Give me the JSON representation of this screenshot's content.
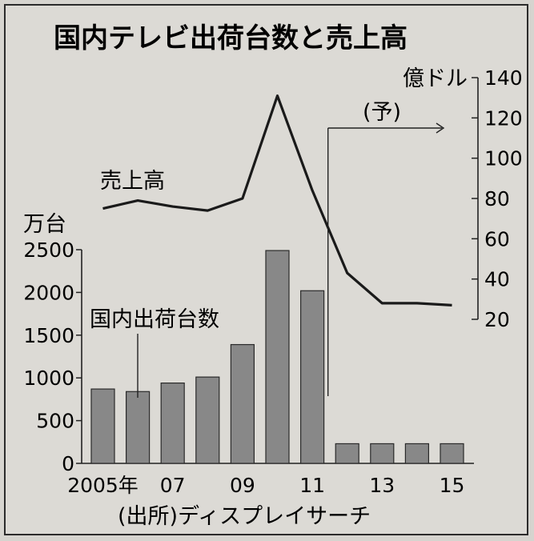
{
  "chart_data": {
    "type": "bar+line",
    "title": "国内テレビ出荷台数と売上高",
    "categories": [
      "2005",
      "2006",
      "2007",
      "2008",
      "2009",
      "2010",
      "2011",
      "2012",
      "2013",
      "2014",
      "2015"
    ],
    "x_tick_labels": [
      "2005年",
      "07",
      "09",
      "11",
      "13",
      "15"
    ],
    "forecast_label": "(予)",
    "forecast_from": "2012",
    "source": "(出所)ディスプレイサーチ",
    "series": [
      {
        "name": "国内出荷台数",
        "type": "bar",
        "axis": "left",
        "values": [
          870,
          840,
          940,
          1010,
          1390,
          2490,
          2020,
          230,
          230,
          230,
          230
        ]
      },
      {
        "name": "売上高",
        "type": "line",
        "axis": "right",
        "values": [
          75,
          79,
          76,
          74,
          80,
          131,
          84,
          43,
          28,
          28,
          27
        ]
      }
    ],
    "left_axis": {
      "unit": "万台",
      "ylim": [
        0,
        2500
      ],
      "ticks": [
        "0",
        "500",
        "1000",
        "1500",
        "2000",
        "2500"
      ]
    },
    "right_axis": {
      "unit": "億ドル",
      "ylim": [
        20,
        140
      ],
      "ticks": [
        "20",
        "40",
        "60",
        "80",
        "100",
        "120",
        "140"
      ]
    },
    "colors": {
      "bar": "#888888",
      "bar_stroke": "#2a2a2a",
      "line": "#1a1a1a",
      "background": "#dcdad5"
    }
  }
}
